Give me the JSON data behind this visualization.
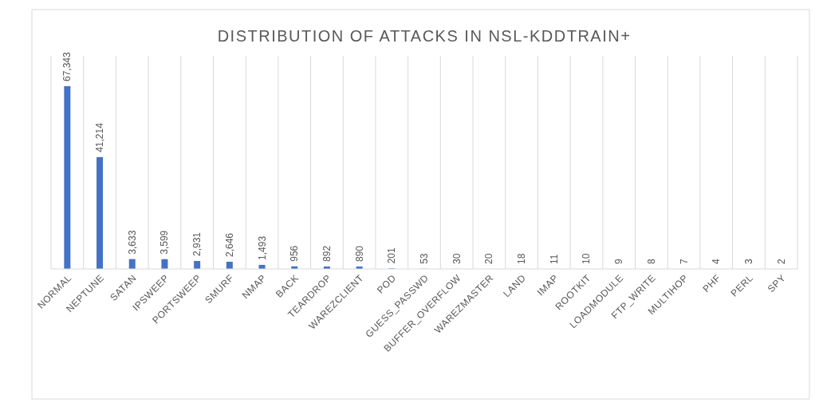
{
  "chart_data": {
    "type": "bar",
    "title": "DISTRIBUTION OF ATTACKS IN NSL-KDDTRAIN+",
    "categories": [
      "NORMAL",
      "NEPTUNE",
      "SATAN",
      "IPSWEEP",
      "PORTSWEEP",
      "SMURF",
      "NMAP",
      "BACK",
      "TEARDROP",
      "WAREZCLIENT",
      "POD",
      "GUESS_PASSWD",
      "BUFFER_OVERFLOW",
      "WAREZMASTER",
      "LAND",
      "IMAP",
      "ROOTKIT",
      "LOADMODULE",
      "FTP_WRITE",
      "MULTIHOP",
      "PHF",
      "PERL",
      "SPY"
    ],
    "values": [
      67343,
      41214,
      3633,
      3599,
      2931,
      2646,
      1493,
      956,
      892,
      890,
      201,
      53,
      30,
      20,
      18,
      11,
      10,
      9,
      8,
      7,
      4,
      3,
      2
    ],
    "value_labels": [
      "67,343",
      "41,214",
      "3,633",
      "3,599",
      "2,931",
      "2,646",
      "1,493",
      "956",
      "892",
      "890",
      "201",
      "53",
      "30",
      "20",
      "18",
      "11",
      "10",
      "9",
      "8",
      "7",
      "4",
      "3",
      "2"
    ],
    "color": "#4472c4",
    "grid": "x"
  }
}
